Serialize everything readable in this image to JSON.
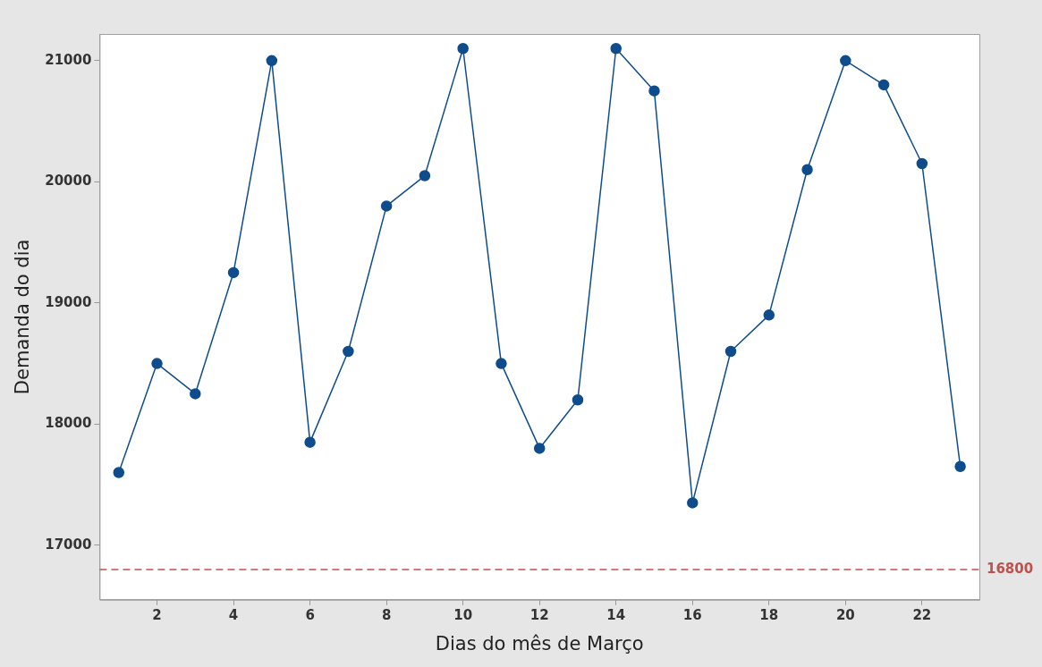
{
  "chart_data": {
    "type": "line",
    "xlabel": "Dias do mês de Março",
    "ylabel": "Demanda do dia",
    "x": [
      1,
      2,
      3,
      4,
      5,
      6,
      7,
      8,
      9,
      10,
      11,
      12,
      13,
      14,
      15,
      16,
      17,
      18,
      19,
      20,
      21,
      22,
      23
    ],
    "series": [
      {
        "color": "#0f4c8c",
        "values": [
          17600,
          18500,
          18250,
          19250,
          21000,
          17850,
          18600,
          19800,
          20050,
          21100,
          18500,
          17800,
          18200,
          21100,
          20750,
          17350,
          18600,
          18900,
          20100,
          21000,
          20800,
          20150,
          17650
        ]
      }
    ],
    "xlim": [
      0.5,
      23.5
    ],
    "xticks": [
      2,
      4,
      6,
      8,
      10,
      12,
      14,
      16,
      18,
      20,
      22
    ],
    "ylim": [
      16550,
      21220
    ],
    "yticks": [
      17000,
      18000,
      19000,
      20000,
      21000
    ],
    "ref_lines": [
      {
        "axis": "y",
        "value": 16800,
        "label": "16800",
        "color": "#c0504d",
        "line_style": "dashed"
      }
    ],
    "grid": false,
    "legend": false,
    "marker": "circle",
    "line_style": "solid"
  }
}
